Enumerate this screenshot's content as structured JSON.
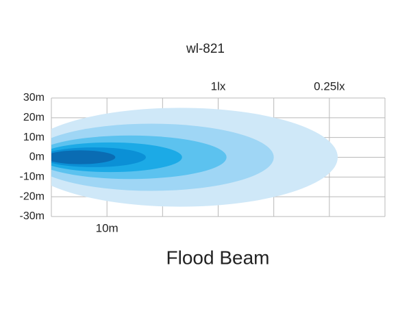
{
  "chart_data": {
    "type": "beam",
    "title": "wl-821",
    "subtitle": "Flood Beam",
    "xlim": [
      0,
      60
    ],
    "xticks": [
      0,
      10,
      20,
      30,
      40,
      50,
      60
    ],
    "x_labels": [
      {
        "value": 10,
        "label": "10m"
      }
    ],
    "ylim": [
      -30,
      30
    ],
    "yticks": [
      {
        "value": 30,
        "label": "30m"
      },
      {
        "value": 20,
        "label": "20m"
      },
      {
        "value": 10,
        "label": "10m"
      },
      {
        "value": 0,
        "label": "0m"
      },
      {
        "value": -10,
        "label": "-10m"
      },
      {
        "value": -20,
        "label": "-20m"
      },
      {
        "value": -30,
        "label": "-30m"
      }
    ],
    "grid": true,
    "annotations": [
      {
        "x": 30,
        "label": "1lx"
      },
      {
        "x": 50,
        "label": "0.25lx"
      }
    ],
    "contours": [
      {
        "reach": 51.5,
        "half_width": 25,
        "color": "#cfe8f8"
      },
      {
        "reach": 40,
        "half_width": 17,
        "color": "#9fd6f5"
      },
      {
        "reach": 31.5,
        "half_width": 11,
        "color": "#5cc2ef"
      },
      {
        "reach": 23.5,
        "half_width": 7.5,
        "color": "#1caae6"
      },
      {
        "reach": 17,
        "half_width": 5,
        "color": "#0b90d6"
      },
      {
        "reach": 11.5,
        "half_width": 3.5,
        "color": "#0a6cb3"
      }
    ]
  }
}
